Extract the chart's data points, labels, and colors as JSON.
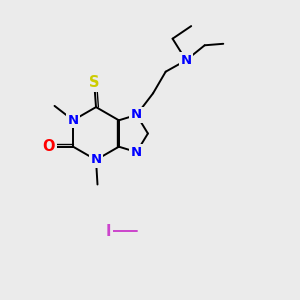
{
  "bg_color": "#ebebeb",
  "atom_colors": {
    "N": "#0000ff",
    "O": "#ff0000",
    "S": "#cccc00",
    "I": "#cc44cc",
    "C": "#000000"
  },
  "bond_color": "#000000",
  "font_size": 9.5,
  "bond_width": 1.4
}
